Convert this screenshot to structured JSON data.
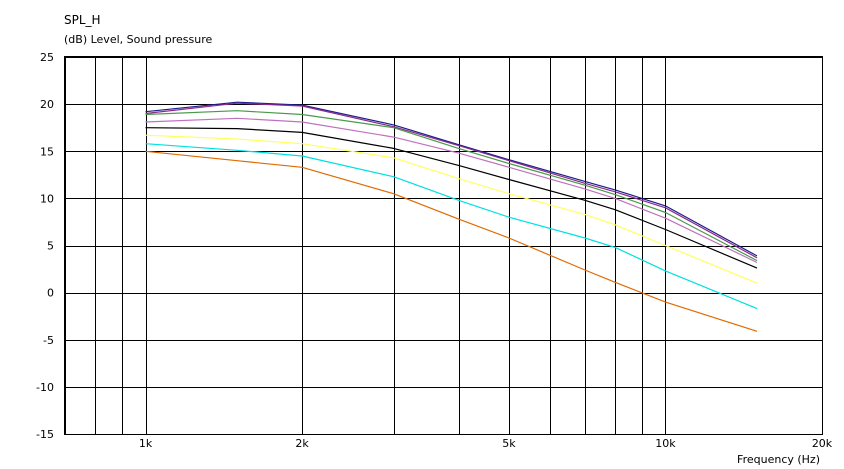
{
  "chart_data": {
    "type": "line",
    "title": "SPL_H",
    "ylabel": "(dB)  Level, Sound pressure",
    "xlabel": "Frequency  (Hz)",
    "x_scale": "log",
    "xlim": [
      700,
      20000
    ],
    "ylim": [
      -15,
      25
    ],
    "grid": true,
    "legend": "none",
    "x_tick_labels": [
      {
        "value": 1000,
        "label": "1k"
      },
      {
        "value": 2000,
        "label": "2k"
      },
      {
        "value": 5000,
        "label": "5k"
      },
      {
        "value": 10000,
        "label": "10k"
      },
      {
        "value": 20000,
        "label": "20k"
      }
    ],
    "x_gridlines": [
      700,
      800,
      900,
      1000,
      2000,
      3000,
      4000,
      5000,
      6000,
      7000,
      8000,
      9000,
      10000,
      20000
    ],
    "y_ticks": [
      {
        "value": 25,
        "label": "25"
      },
      {
        "value": 20,
        "label": "20"
      },
      {
        "value": 15,
        "label": "15"
      },
      {
        "value": 10,
        "label": "10"
      },
      {
        "value": 5,
        "label": "5"
      },
      {
        "value": 0,
        "label": "0"
      },
      {
        "value": -5,
        "label": "-5"
      },
      {
        "value": -10,
        "label": "-10"
      },
      {
        "value": -15,
        "label": "-15"
      }
    ],
    "x": [
      1000,
      1500,
      2000,
      3000,
      4000,
      5000,
      7000,
      8000,
      10000,
      15000
    ],
    "series": [
      {
        "color": "#1c1c8c",
        "values": [
          19.2,
          20.2,
          19.9,
          17.8,
          15.7,
          14.1,
          11.8,
          10.9,
          9.2,
          3.9
        ]
      },
      {
        "color": "#8a2a8a",
        "values": [
          19.0,
          20.1,
          19.8,
          17.6,
          15.6,
          14.0,
          11.6,
          10.7,
          9.0,
          3.7
        ]
      },
      {
        "color": "#4a9a4a",
        "values": [
          18.9,
          19.3,
          18.9,
          17.5,
          15.3,
          13.7,
          11.4,
          10.4,
          8.5,
          3.4
        ]
      },
      {
        "color": "#c070c0",
        "values": [
          18.1,
          18.5,
          18.1,
          16.5,
          14.8,
          13.3,
          11.0,
          10.0,
          7.9,
          3.2
        ]
      },
      {
        "color": "#000000",
        "values": [
          17.5,
          17.4,
          17.0,
          15.3,
          13.5,
          12.0,
          9.8,
          8.8,
          6.7,
          2.6
        ]
      },
      {
        "color": "#ffff60",
        "values": [
          16.7,
          16.3,
          15.8,
          14.3,
          12.1,
          10.5,
          8.3,
          7.2,
          5.0,
          1.0
        ]
      },
      {
        "color": "#00e0e0",
        "values": [
          15.8,
          15.1,
          14.5,
          12.3,
          9.8,
          8.0,
          5.8,
          4.8,
          2.3,
          -1.7
        ]
      },
      {
        "color": "#e06a00",
        "values": [
          15.0,
          14.0,
          13.3,
          10.5,
          7.8,
          5.8,
          2.4,
          1.1,
          -1.0,
          -4.1
        ]
      }
    ]
  }
}
